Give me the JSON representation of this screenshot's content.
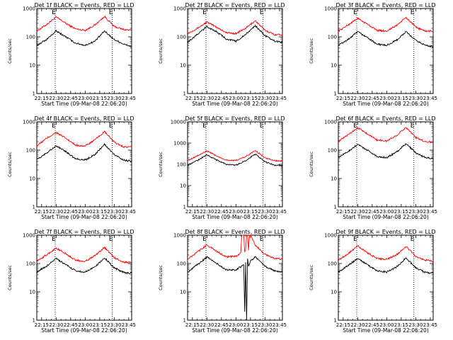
{
  "chart_data": [
    {
      "type": "line",
      "title": "Det 1f BLACK = Events, RED = LLD",
      "xlabel": "Start Time (09-Mar-08 22:06:20)",
      "ylabel": "Counts/sec",
      "y_scale": "log",
      "ylim": [
        1,
        1000
      ],
      "y_ticks": [
        "1",
        "10",
        "100",
        "1000"
      ],
      "x_ticks": [
        "22:15",
        "22:30",
        "22:45",
        "23:00",
        "23:15",
        "23:30",
        "23:45"
      ],
      "xlim": [
        "22:10",
        "23:48"
      ],
      "markers": [
        {
          "time": "22:29",
          "label": "E"
        },
        {
          "time": "23:28",
          "label": "E"
        }
      ],
      "series": [
        {
          "name": "RED",
          "color": "#ff0000",
          "x": [
            "22:10",
            "22:20",
            "22:30",
            "22:40",
            "22:50",
            "23:00",
            "23:10",
            "23:20",
            "23:30",
            "23:40",
            "23:48"
          ],
          "values": [
            160,
            270,
            500,
            300,
            190,
            170,
            260,
            520,
            230,
            180,
            170
          ]
        },
        {
          "name": "BLACK",
          "color": "#000000",
          "x": [
            "22:10",
            "22:20",
            "22:30",
            "22:40",
            "22:50",
            "23:00",
            "23:10",
            "23:20",
            "23:30",
            "23:40",
            "23:48"
          ],
          "values": [
            50,
            80,
            160,
            100,
            60,
            50,
            70,
            160,
            80,
            55,
            45
          ]
        }
      ]
    },
    {
      "type": "line",
      "title": "Det 2f BLACK = Events, RED = LLD",
      "xlabel": "Start Time (09-Mar-08 22:06:20)",
      "ylabel": "Counts/sec",
      "y_scale": "log",
      "ylim": [
        1,
        1000
      ],
      "y_ticks": [
        "1",
        "10",
        "100",
        "1000"
      ],
      "x_ticks": [
        "22:15",
        "22:30",
        "22:45",
        "23:00",
        "23:15",
        "23:30",
        "23:45"
      ],
      "xlim": [
        "22:10",
        "23:48"
      ],
      "markers": [
        {
          "time": "22:29",
          "label": "E"
        },
        {
          "time": "23:28",
          "label": "E"
        }
      ],
      "series": [
        {
          "name": "RED",
          "color": "#ff0000",
          "x": [
            "22:10",
            "22:20",
            "22:30",
            "22:40",
            "22:50",
            "23:00",
            "23:10",
            "23:20",
            "23:30",
            "23:40",
            "23:48"
          ],
          "values": [
            130,
            200,
            330,
            220,
            140,
            130,
            200,
            370,
            170,
            120,
            120
          ]
        },
        {
          "name": "BLACK",
          "color": "#000000",
          "x": [
            "22:10",
            "22:20",
            "22:30",
            "22:40",
            "22:50",
            "23:00",
            "23:10",
            "23:20",
            "23:30",
            "23:40",
            "23:48"
          ],
          "values": [
            65,
            120,
            230,
            150,
            85,
            70,
            120,
            250,
            110,
            70,
            65
          ]
        }
      ]
    },
    {
      "type": "line",
      "title": "Det 3f BLACK = Events, RED = LLD",
      "xlabel": "Start Time (09-Mar-08 22:06:20)",
      "ylabel": "Counts/sec",
      "y_scale": "log",
      "ylim": [
        1,
        1000
      ],
      "y_ticks": [
        "1",
        "10",
        "100",
        "1000"
      ],
      "x_ticks": [
        "22:15",
        "22:30",
        "22:45",
        "23:00",
        "23:15",
        "23:30",
        "23:45"
      ],
      "xlim": [
        "22:10",
        "23:48"
      ],
      "markers": [
        {
          "time": "22:29",
          "label": "E"
        },
        {
          "time": "23:28",
          "label": "E"
        }
      ],
      "series": [
        {
          "name": "RED",
          "color": "#ff0000",
          "x": [
            "22:10",
            "22:20",
            "22:30",
            "22:40",
            "22:50",
            "23:00",
            "23:10",
            "23:20",
            "23:30",
            "23:40",
            "23:48"
          ],
          "values": [
            160,
            260,
            450,
            280,
            170,
            160,
            250,
            480,
            220,
            160,
            160
          ]
        },
        {
          "name": "BLACK",
          "color": "#000000",
          "x": [
            "22:10",
            "22:20",
            "22:30",
            "22:40",
            "22:50",
            "23:00",
            "23:10",
            "23:20",
            "23:30",
            "23:40",
            "23:48"
          ],
          "values": [
            50,
            80,
            150,
            95,
            55,
            50,
            75,
            150,
            75,
            50,
            45
          ]
        }
      ]
    },
    {
      "type": "line",
      "title": "Det 4f BLACK = Events, RED = LLD",
      "xlabel": "Start Time (09-Mar-08 22:06:20)",
      "ylabel": "Counts/sec",
      "y_scale": "log",
      "ylim": [
        1,
        1000
      ],
      "y_ticks": [
        "1",
        "10",
        "100",
        "1000"
      ],
      "x_ticks": [
        "22:15",
        "22:30",
        "22:45",
        "23:00",
        "23:15",
        "23:30",
        "23:45"
      ],
      "xlim": [
        "22:10",
        "23:48"
      ],
      "markers": [
        {
          "time": "22:29",
          "label": "E"
        },
        {
          "time": "23:28",
          "label": "E"
        }
      ],
      "series": [
        {
          "name": "RED",
          "color": "#ff0000",
          "x": [
            "22:10",
            "22:20",
            "22:30",
            "22:40",
            "22:50",
            "23:00",
            "23:10",
            "23:20",
            "23:30",
            "23:40",
            "23:48"
          ],
          "values": [
            140,
            260,
            420,
            260,
            150,
            140,
            230,
            450,
            190,
            130,
            130
          ]
        },
        {
          "name": "BLACK",
          "color": "#000000",
          "x": [
            "22:10",
            "22:20",
            "22:30",
            "22:40",
            "22:50",
            "23:00",
            "23:10",
            "23:20",
            "23:30",
            "23:40",
            "23:48"
          ],
          "values": [
            45,
            80,
            140,
            90,
            50,
            45,
            70,
            160,
            70,
            45,
            40
          ]
        }
      ]
    },
    {
      "type": "line",
      "title": "Det 5f BLACK = Events, RED = LLD",
      "xlabel": "Start Time (09-Mar-08 22:06:20)",
      "ylabel": "Counts/sec",
      "y_scale": "log",
      "ylim": [
        1,
        10000
      ],
      "y_ticks": [
        "1",
        "10",
        "100",
        "1000",
        "10000"
      ],
      "x_ticks": [
        "22:15",
        "22:30",
        "22:45",
        "23:00",
        "23:15",
        "23:30",
        "23:45"
      ],
      "xlim": [
        "22:10",
        "23:48"
      ],
      "markers": [
        {
          "time": "22:29",
          "label": "E"
        },
        {
          "time": "23:28",
          "label": "E"
        }
      ],
      "series": [
        {
          "name": "RED",
          "color": "#ff0000",
          "x": [
            "22:10",
            "22:20",
            "22:30",
            "22:40",
            "22:50",
            "23:00",
            "23:10",
            "23:20",
            "23:30",
            "23:40",
            "23:48"
          ],
          "values": [
            150,
            250,
            420,
            250,
            160,
            150,
            230,
            450,
            200,
            150,
            140
          ]
        },
        {
          "name": "BLACK",
          "color": "#000000",
          "x": [
            "22:10",
            "22:20",
            "22:30",
            "22:40",
            "22:50",
            "23:00",
            "23:10",
            "23:20",
            "23:30",
            "23:40",
            "23:48"
          ],
          "values": [
            90,
            150,
            280,
            160,
            100,
            90,
            150,
            300,
            130,
            90,
            90
          ]
        }
      ]
    },
    {
      "type": "line",
      "title": "Det 6f BLACK = Events, RED = LLD",
      "xlabel": "Start Time (09-Mar-08 22:06:20)",
      "ylabel": "Counts/sec",
      "y_scale": "log",
      "ylim": [
        1,
        1000
      ],
      "y_ticks": [
        "1",
        "10",
        "100",
        "1000"
      ],
      "x_ticks": [
        "22:15",
        "22:30",
        "22:45",
        "23:00",
        "23:15",
        "23:30",
        "23:45"
      ],
      "xlim": [
        "22:10",
        "23:48"
      ],
      "markers": [
        {
          "time": "22:29",
          "label": "E"
        },
        {
          "time": "23:28",
          "label": "E"
        }
      ],
      "series": [
        {
          "name": "RED",
          "color": "#ff0000",
          "x": [
            "22:10",
            "22:20",
            "22:30",
            "22:40",
            "22:50",
            "23:00",
            "23:10",
            "23:20",
            "23:30",
            "23:40",
            "23:48"
          ],
          "values": [
            200,
            350,
            620,
            380,
            230,
            210,
            330,
            640,
            280,
            200,
            190
          ]
        },
        {
          "name": "BLACK",
          "color": "#000000",
          "x": [
            "22:10",
            "22:20",
            "22:30",
            "22:40",
            "22:50",
            "23:00",
            "23:10",
            "23:20",
            "23:30",
            "23:40",
            "23:48"
          ],
          "values": [
            55,
            90,
            160,
            100,
            60,
            55,
            85,
            170,
            80,
            55,
            50
          ]
        }
      ]
    },
    {
      "type": "line",
      "title": "Det 7f BLACK = Events, RED = LLD",
      "xlabel": "Start Time (09-Mar-08 22:06:20)",
      "ylabel": "Counts/sec",
      "y_scale": "log",
      "ylim": [
        1,
        1000
      ],
      "y_ticks": [
        "1",
        "10",
        "100",
        "1000"
      ],
      "x_ticks": [
        "22:15",
        "22:30",
        "22:45",
        "23:00",
        "23:15",
        "23:30",
        "23:45"
      ],
      "xlim": [
        "22:10",
        "23:48"
      ],
      "markers": [
        {
          "time": "22:29",
          "label": "E"
        },
        {
          "time": "23:28",
          "label": "E"
        }
      ],
      "series": [
        {
          "name": "RED",
          "color": "#ff0000",
          "x": [
            "22:10",
            "22:20",
            "22:30",
            "22:40",
            "22:50",
            "23:00",
            "23:10",
            "23:20",
            "23:30",
            "23:40",
            "23:48"
          ],
          "values": [
            120,
            200,
            350,
            220,
            130,
            120,
            190,
            370,
            160,
            110,
            110
          ]
        },
        {
          "name": "BLACK",
          "color": "#000000",
          "x": [
            "22:10",
            "22:20",
            "22:30",
            "22:40",
            "22:50",
            "23:00",
            "23:10",
            "23:20",
            "23:30",
            "23:40",
            "23:48"
          ],
          "values": [
            50,
            80,
            150,
            90,
            55,
            50,
            75,
            160,
            70,
            48,
            45
          ]
        }
      ]
    },
    {
      "type": "line",
      "title": "Det 8f BLACK = Events, RED = LLD",
      "xlabel": "Start Time (09-Mar-08 22:06:20)",
      "ylabel": "Counts/sec",
      "y_scale": "log",
      "ylim": [
        1,
        1000
      ],
      "y_ticks": [
        "1",
        "10",
        "100",
        "1000"
      ],
      "x_ticks": [
        "22:15",
        "22:30",
        "22:45",
        "23:00",
        "23:15",
        "23:30",
        "23:45"
      ],
      "xlim": [
        "22:10",
        "23:48"
      ],
      "markers": [
        {
          "time": "22:29",
          "label": "E"
        },
        {
          "time": "23:28",
          "label": "E"
        }
      ],
      "series": [
        {
          "name": "RED",
          "color": "#ff0000",
          "x": [
            "22:10",
            "22:20",
            "22:30",
            "22:40",
            "22:50",
            "23:00",
            "23:05",
            "23:06",
            "23:08",
            "23:09",
            "23:10",
            "23:11",
            "23:12",
            "23:13",
            "23:14",
            "23:15",
            "23:20",
            "23:30",
            "23:40",
            "23:48"
          ],
          "values": [
            140,
            250,
            450,
            270,
            170,
            180,
            240,
            1000,
            1000,
            260,
            300,
            1000,
            1000,
            290,
            1000,
            1000,
            440,
            210,
            150,
            140
          ]
        },
        {
          "name": "BLACK",
          "color": "#000000",
          "x": [
            "22:10",
            "22:20",
            "22:30",
            "22:40",
            "22:50",
            "23:00",
            "23:08",
            "23:09",
            "23:10",
            "23:11",
            "23:12",
            "23:13",
            "23:15",
            "23:20",
            "23:30",
            "23:40",
            "23:48"
          ],
          "values": [
            50,
            90,
            170,
            100,
            60,
            60,
            90,
            2,
            110,
            1,
            150,
            80,
            120,
            170,
            80,
            55,
            50
          ]
        }
      ]
    },
    {
      "type": "line",
      "title": "Det 9f BLACK = Events, RED = LLD",
      "xlabel": "Start Time (09-Mar-08 22:06:20)",
      "ylabel": "Counts/sec",
      "y_scale": "log",
      "ylim": [
        1,
        1000
      ],
      "y_ticks": [
        "1",
        "10",
        "100",
        "1000"
      ],
      "x_ticks": [
        "22:15",
        "22:30",
        "22:45",
        "23:00",
        "23:15",
        "23:30",
        "23:45"
      ],
      "xlim": [
        "22:10",
        "23:48"
      ],
      "markers": [
        {
          "time": "22:29",
          "label": "E"
        },
        {
          "time": "23:28",
          "label": "E"
        }
      ],
      "series": [
        {
          "name": "RED",
          "color": "#ff0000",
          "x": [
            "22:10",
            "22:20",
            "22:30",
            "22:40",
            "22:50",
            "23:00",
            "23:10",
            "23:20",
            "23:30",
            "23:40",
            "23:48"
          ],
          "values": [
            130,
            220,
            420,
            240,
            150,
            140,
            200,
            400,
            180,
            130,
            120
          ]
        },
        {
          "name": "BLACK",
          "color": "#000000",
          "x": [
            "22:10",
            "22:20",
            "22:30",
            "22:40",
            "22:50",
            "23:00",
            "23:10",
            "23:20",
            "23:30",
            "23:40",
            "23:48"
          ],
          "values": [
            50,
            85,
            150,
            90,
            55,
            50,
            75,
            160,
            70,
            48,
            45
          ]
        }
      ]
    }
  ]
}
